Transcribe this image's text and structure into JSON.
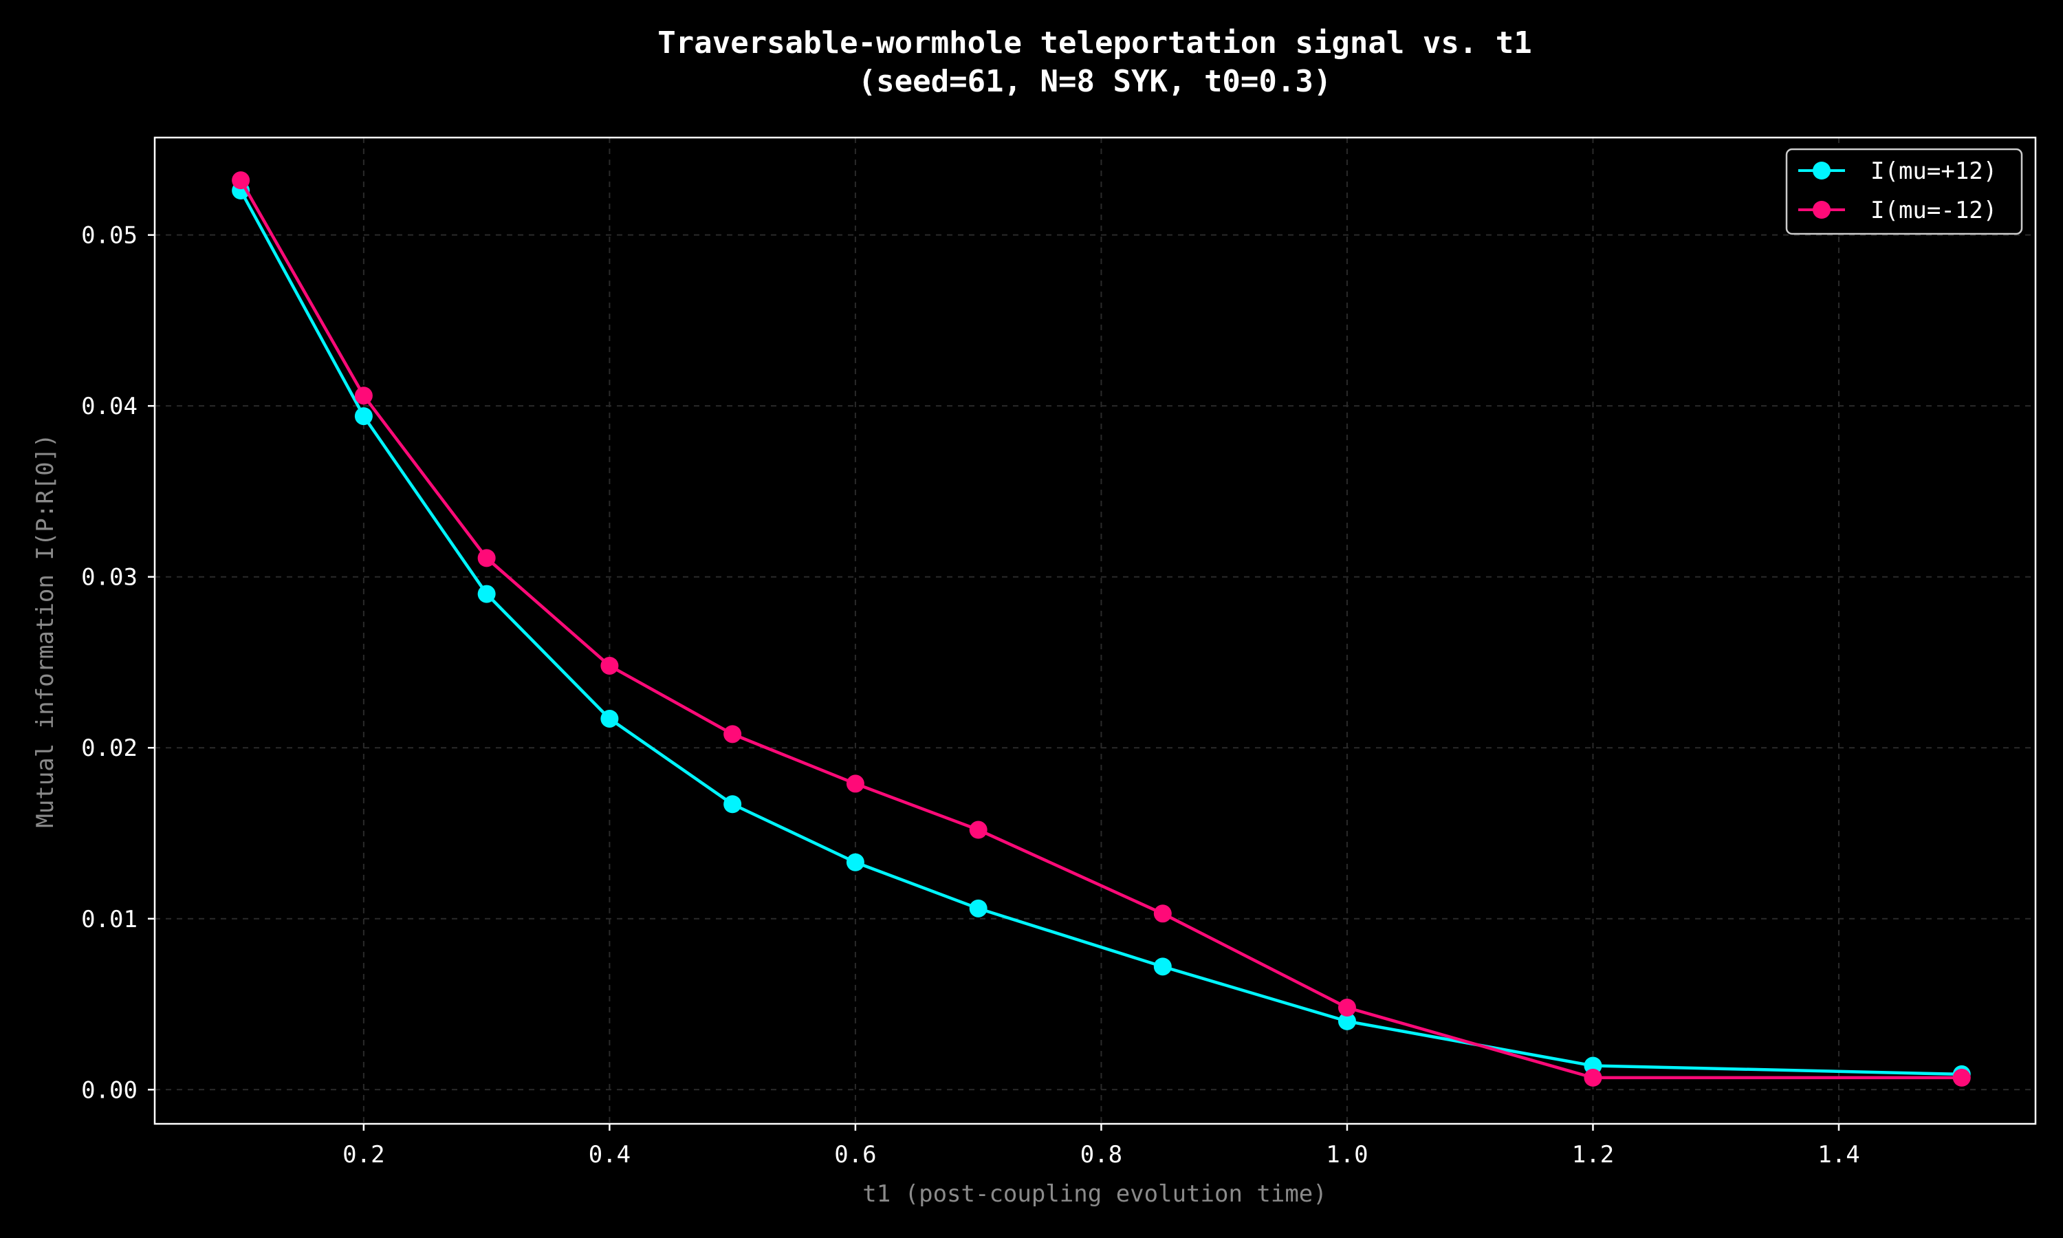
{
  "chart_data": {
    "type": "line",
    "title": "Traversable-wormhole teleportation signal vs. t1",
    "subtitle": "(seed=61, N=8 SYK, t0=0.3)",
    "xlabel": "t1 (post-coupling evolution time)",
    "ylabel": "Mutual information I(P:R[0])",
    "xlim": [
      0.03,
      1.56
    ],
    "ylim": [
      -0.002,
      0.0557
    ],
    "xticks": [
      0.2,
      0.4,
      0.6,
      0.8,
      1.0,
      1.2,
      1.4
    ],
    "xtick_labels": [
      "0.2",
      "0.4",
      "0.6",
      "0.8",
      "1.0",
      "1.2",
      "1.4"
    ],
    "yticks": [
      0.0,
      0.01,
      0.02,
      0.03,
      0.04,
      0.05
    ],
    "ytick_labels": [
      "0.00",
      "0.01",
      "0.02",
      "0.03",
      "0.04",
      "0.05"
    ],
    "grid": true,
    "legend_position": "top-right",
    "x": [
      0.1,
      0.2,
      0.3,
      0.4,
      0.5,
      0.6,
      0.7,
      0.85,
      1.0,
      1.2,
      1.5
    ],
    "series": [
      {
        "name": "I(mu=+12)",
        "color": "#00f5ff",
        "values": [
          0.0526,
          0.0394,
          0.029,
          0.0217,
          0.0167,
          0.0133,
          0.0106,
          0.0072,
          0.004,
          0.0014,
          0.0009
        ]
      },
      {
        "name": "I(mu=-12)",
        "color": "#ff0a78",
        "values": [
          0.0532,
          0.0406,
          0.0311,
          0.0248,
          0.0208,
          0.0179,
          0.0152,
          0.0103,
          0.0048,
          0.0007,
          0.0007
        ]
      }
    ],
    "colors": {
      "background": "#000000",
      "axes": "#ffffff",
      "axis_label": "#8a8a8a",
      "grid": "#2a2a2a"
    }
  }
}
